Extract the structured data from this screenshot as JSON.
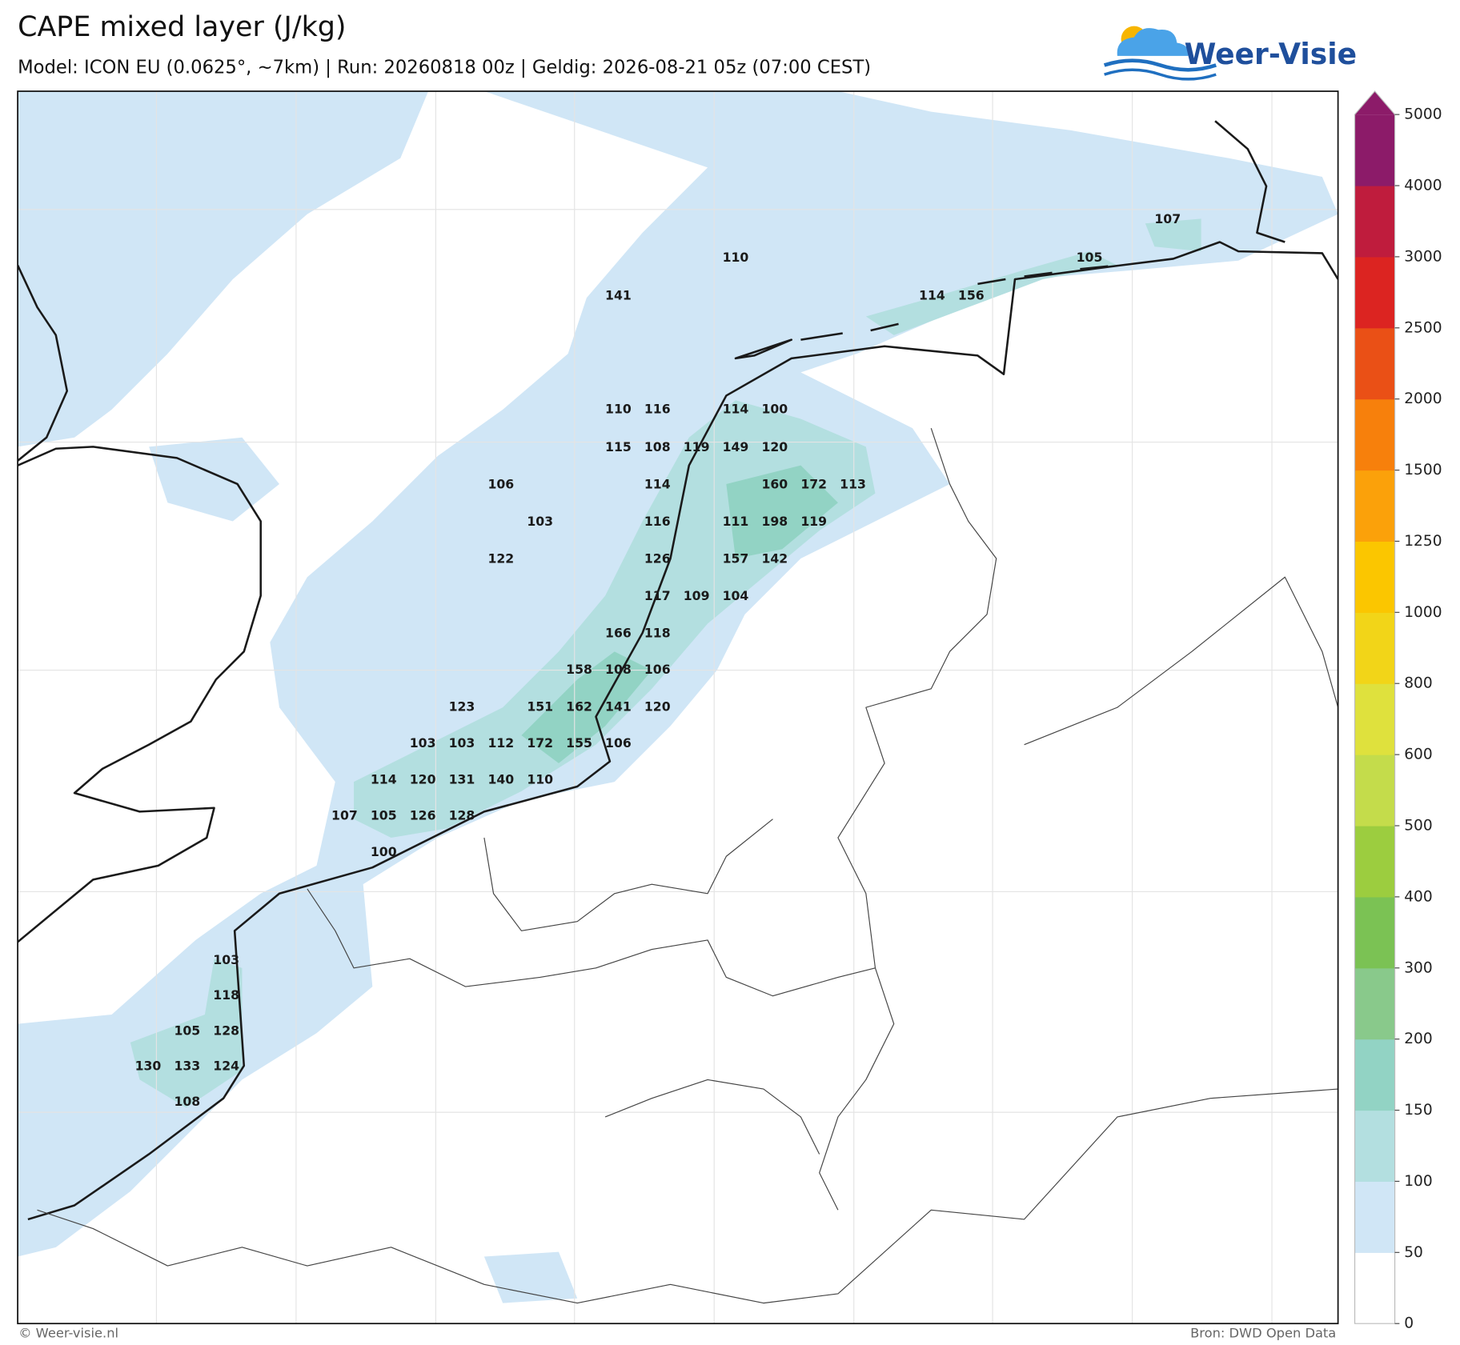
{
  "header": {
    "title": "CAPE mixed layer (J/kg)",
    "subtitle": "Model: ICON EU (0.0625°, ~7km)  |  Run: 20260818 00z  |  Geldig: 2026-08-21 05z (07:00 CEST)"
  },
  "logo": {
    "text": "Weer-Visie"
  },
  "map": {
    "values": [
      107,
      110,
      105,
      141,
      114,
      156,
      110,
      116,
      114,
      100,
      115,
      108,
      119,
      149,
      120,
      106,
      114,
      160,
      172,
      113,
      103,
      116,
      111,
      198,
      119,
      122,
      126,
      157,
      142,
      117,
      109,
      104,
      166,
      118,
      158,
      108,
      106,
      123,
      151,
      162,
      141,
      120,
      103,
      103,
      112,
      172,
      155,
      106,
      114,
      120,
      131,
      140,
      110,
      107,
      105,
      126,
      128,
      100,
      103,
      118,
      105,
      128,
      130,
      133,
      124,
      108
    ]
  },
  "colorbar": {
    "ticks": [
      0,
      50,
      100,
      150,
      200,
      300,
      400,
      500,
      600,
      800,
      1000,
      1250,
      1500,
      2000,
      2500,
      3000,
      4000,
      5000
    ],
    "colors": [
      "#ffffff",
      "#d0e6f6",
      "#b3dfe0",
      "#92d3c4",
      "#89c98b",
      "#7bc254",
      "#9ccd3f",
      "#c4dc4b",
      "#dfe13d",
      "#f2d518",
      "#fbc600",
      "#fba10a",
      "#f7800c",
      "#ea5016",
      "#dc2421",
      "#bf1c3d",
      "#8c1b69"
    ],
    "extend_color": "#8c1b69"
  },
  "footer": {
    "left": "© Weer-visie.nl",
    "right": "Bron: DWD Open Data"
  }
}
